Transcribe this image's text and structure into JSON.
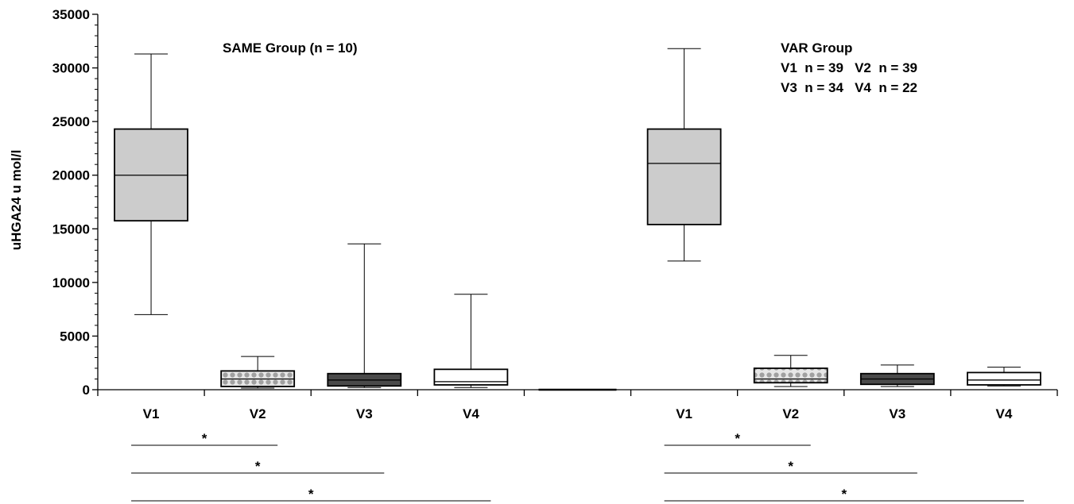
{
  "chart_data": {
    "type": "box",
    "ylabel": "uHGA24 u mol/l",
    "ylim": [
      0,
      35000
    ],
    "yticks": [
      0,
      5000,
      10000,
      15000,
      20000,
      25000,
      30000,
      35000
    ],
    "ytick_labels": [
      "0",
      "5000",
      "10000",
      "15000",
      "20000",
      "25000",
      "30000",
      "35000"
    ],
    "categories": [
      "V1",
      "V2",
      "V3",
      "V4",
      "",
      "V1",
      "V2",
      "V3",
      "V4"
    ],
    "groups": [
      {
        "label_lines": [
          "SAME Group (n = 10)"
        ]
      },
      {
        "label_lines": [
          "VAR Group",
          "V1  n = 39   V2  n = 39",
          "V3  n = 34   V4  n = 22"
        ]
      }
    ],
    "boxes": [
      {
        "slot": 0,
        "group": 0,
        "label": "V1",
        "fill": "grey",
        "whisker_low": 7000,
        "q1": 15750,
        "median": 20000,
        "q3": 24300,
        "whisker_high": 31300
      },
      {
        "slot": 1,
        "group": 0,
        "label": "V2",
        "fill": "dotted",
        "whisker_low": 150,
        "q1": 300,
        "median": 1000,
        "q3": 1750,
        "whisker_high": 3100
      },
      {
        "slot": 2,
        "group": 0,
        "label": "V3",
        "fill": "dark",
        "whisker_low": 200,
        "q1": 350,
        "median": 900,
        "q3": 1500,
        "whisker_high": 13600
      },
      {
        "slot": 3,
        "group": 0,
        "label": "V4",
        "fill": "white",
        "whisker_low": 200,
        "q1": 450,
        "median": 750,
        "q3": 1900,
        "whisker_high": 8900
      },
      {
        "slot": 5,
        "group": 1,
        "label": "V1",
        "fill": "grey",
        "whisker_low": 12000,
        "q1": 15400,
        "median": 21100,
        "q3": 24300,
        "whisker_high": 31800
      },
      {
        "slot": 6,
        "group": 1,
        "label": "V2",
        "fill": "dotted",
        "whisker_low": 300,
        "q1": 650,
        "median": 1000,
        "q3": 2000,
        "whisker_high": 3200
      },
      {
        "slot": 7,
        "group": 1,
        "label": "V3",
        "fill": "dark",
        "whisker_low": 300,
        "q1": 500,
        "median": 1000,
        "q3": 1500,
        "whisker_high": 2300
      },
      {
        "slot": 8,
        "group": 1,
        "label": "V4",
        "fill": "white",
        "whisker_low": 350,
        "q1": 450,
        "median": 900,
        "q3": 1600,
        "whisker_high": 2100
      }
    ],
    "significance": [
      {
        "from_slot": 0,
        "to_slot": 1,
        "label": "*"
      },
      {
        "from_slot": 0,
        "to_slot": 2,
        "label": "*"
      },
      {
        "from_slot": 0,
        "to_slot": 3,
        "label": "*"
      },
      {
        "from_slot": 5,
        "to_slot": 6,
        "label": "*"
      },
      {
        "from_slot": 5,
        "to_slot": 7,
        "label": "*"
      },
      {
        "from_slot": 5,
        "to_slot": 8,
        "label": "*"
      }
    ],
    "colors": {
      "grey": "#cccccc",
      "dark": "#4a4a4a",
      "white": "#ffffff",
      "dotted_base": "#e6e6e6",
      "dotted_dot": "#a0a0a0"
    },
    "grid": false,
    "legend": "none"
  }
}
